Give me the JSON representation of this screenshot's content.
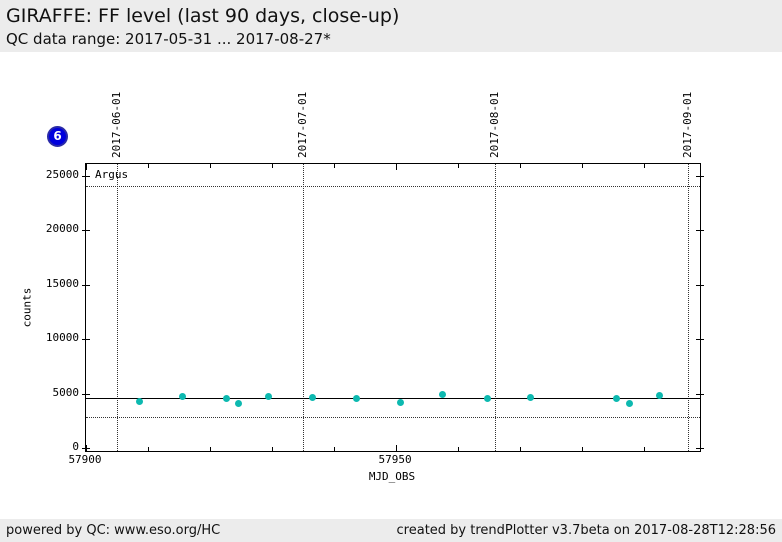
{
  "header": {
    "title": "GIRAFFE: FF level (last 90 days, close-up)",
    "subtitle": "QC data range: 2017-05-31 ... 2017-08-27*"
  },
  "badge": {
    "label": "6",
    "color": "#0000dd"
  },
  "chart_data": {
    "type": "scatter",
    "xlabel": "MJD_OBS",
    "ylabel": "counts",
    "series_label": "Argus",
    "point_color": "#0db9b0",
    "grid": "month boundaries dotted",
    "legend_position": "inside-top-left",
    "xlim": [
      57900,
      57999
    ],
    "ylim": [
      -230,
      26060
    ],
    "x_major_ticks": [
      57900,
      57950
    ],
    "x_minor_ticks": [
      57910,
      57920,
      57930,
      57940,
      57960,
      57970,
      57980,
      57990
    ],
    "y_ticks": [
      0,
      5000,
      10000,
      15000,
      20000,
      25000
    ],
    "month_lines": [
      {
        "label": "2017-06-01",
        "mjd": 57905
      },
      {
        "label": "2017-07-01",
        "mjd": 57935
      },
      {
        "label": "2017-08-01",
        "mjd": 57966
      },
      {
        "label": "2017-09-01",
        "mjd": 57997
      }
    ],
    "reference_lines": {
      "solid_mean": 4580,
      "dotted": [
        2850,
        24000
      ]
    },
    "points": [
      {
        "mjd": 57908.7,
        "counts": 4350
      },
      {
        "mjd": 57915.5,
        "counts": 4800
      },
      {
        "mjd": 57922.6,
        "counts": 4550
      },
      {
        "mjd": 57924.6,
        "counts": 4100
      },
      {
        "mjd": 57929.5,
        "counts": 4800
      },
      {
        "mjd": 57936.5,
        "counts": 4650
      },
      {
        "mjd": 57943.6,
        "counts": 4600
      },
      {
        "mjd": 57950.7,
        "counts": 4200
      },
      {
        "mjd": 57957.5,
        "counts": 4900
      },
      {
        "mjd": 57964.8,
        "counts": 4550
      },
      {
        "mjd": 57971.6,
        "counts": 4650
      },
      {
        "mjd": 57985.5,
        "counts": 4550
      },
      {
        "mjd": 57987.7,
        "counts": 4150
      },
      {
        "mjd": 57992.5,
        "counts": 4850
      }
    ]
  },
  "footer": {
    "left": "powered by QC: www.eso.org/HC",
    "right": "created by trendPlotter v3.7beta on 2017-08-28T12:28:56"
  }
}
